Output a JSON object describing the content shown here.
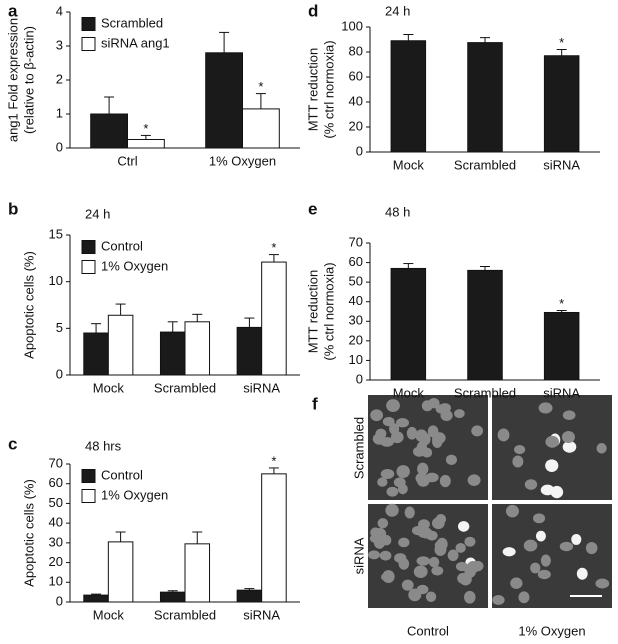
{
  "chart_data": [
    {
      "type": "bar",
      "panel": "a",
      "ylabel": [
        "ang1 Fold expression",
        "(relative to β-actin)"
      ],
      "categories": [
        "Ctrl",
        "1% Oxygen"
      ],
      "ylim": [
        0,
        4
      ],
      "yticks": [
        0,
        1,
        2,
        3,
        4
      ],
      "legend": "upper-left",
      "series": [
        {
          "name": "Scrambled",
          "color": "#1a1a1a",
          "values": [
            1.0,
            2.8
          ],
          "errors": [
            0.5,
            0.6
          ],
          "significance": [
            null,
            null
          ]
        },
        {
          "name": "siRNA ang1",
          "color": "#ffffff",
          "values": [
            0.25,
            1.15
          ],
          "errors": [
            0.12,
            0.45
          ],
          "significance": [
            "*",
            "*"
          ]
        }
      ]
    },
    {
      "type": "bar",
      "panel": "b",
      "subtitle": "24 h",
      "ylabel": [
        "Apoptotic cells (%)"
      ],
      "categories": [
        "Mock",
        "Scrambled",
        "siRNA"
      ],
      "ylim": [
        0,
        15
      ],
      "yticks": [
        0,
        5,
        10,
        15
      ],
      "legend": "upper-left",
      "series": [
        {
          "name": "Control",
          "color": "#1a1a1a",
          "values": [
            4.5,
            4.6,
            5.1
          ],
          "errors": [
            1.0,
            1.1,
            1.0
          ],
          "significance": [
            null,
            null,
            null
          ]
        },
        {
          "name": "1% Oxygen",
          "color": "#ffffff",
          "values": [
            6.4,
            5.7,
            12.1
          ],
          "errors": [
            1.2,
            0.8,
            0.8
          ],
          "significance": [
            null,
            null,
            "*"
          ]
        }
      ]
    },
    {
      "type": "bar",
      "panel": "c",
      "subtitle": "48 hrs",
      "ylabel": [
        "Apoptotic cells (%)"
      ],
      "categories": [
        "Mock",
        "Scrambled",
        "siRNA"
      ],
      "ylim": [
        0,
        70
      ],
      "yticks": [
        0,
        10,
        20,
        30,
        40,
        50,
        60,
        70
      ],
      "legend": "upper-left",
      "series": [
        {
          "name": "Control",
          "color": "#1a1a1a",
          "values": [
            3.5,
            5,
            6
          ],
          "errors": [
            0.5,
            0.7,
            0.8
          ],
          "significance": [
            null,
            null,
            null
          ]
        },
        {
          "name": "1% Oxygen",
          "color": "#ffffff",
          "values": [
            30.5,
            29.5,
            65
          ],
          "errors": [
            5,
            6,
            3
          ],
          "significance": [
            null,
            null,
            "*"
          ]
        }
      ]
    },
    {
      "type": "bar",
      "panel": "d",
      "subtitle": "24 h",
      "ylabel": [
        "MTT reduction",
        "(% ctrl normoxia)"
      ],
      "categories": [
        "Mock",
        "Scrambled",
        "siRNA"
      ],
      "ylim": [
        0,
        100
      ],
      "yticks": [
        0,
        20,
        40,
        60,
        80,
        100
      ],
      "series": [
        {
          "color": "#1a1a1a",
          "values": [
            89,
            87.5,
            77
          ],
          "errors": [
            5,
            4,
            5
          ],
          "significance": [
            null,
            null,
            "*"
          ]
        }
      ]
    },
    {
      "type": "bar",
      "panel": "e",
      "subtitle": "48 h",
      "ylabel": [
        "MTT reduction",
        "(% ctrl normoxia)"
      ],
      "categories": [
        "Mock",
        "Scrambled",
        "siRNA"
      ],
      "ylim": [
        0,
        70
      ],
      "yticks": [
        0,
        10,
        20,
        30,
        40,
        50,
        60,
        70
      ],
      "series": [
        {
          "color": "#1a1a1a",
          "values": [
            57,
            56,
            34.5
          ],
          "errors": [
            2.5,
            2,
            1
          ],
          "significance": [
            null,
            null,
            "*"
          ]
        }
      ]
    }
  ],
  "panel_f": {
    "panel": "f",
    "rows": [
      "Scrambled",
      "siRNA"
    ],
    "columns": [
      "Control",
      "1% Oxygen"
    ]
  }
}
